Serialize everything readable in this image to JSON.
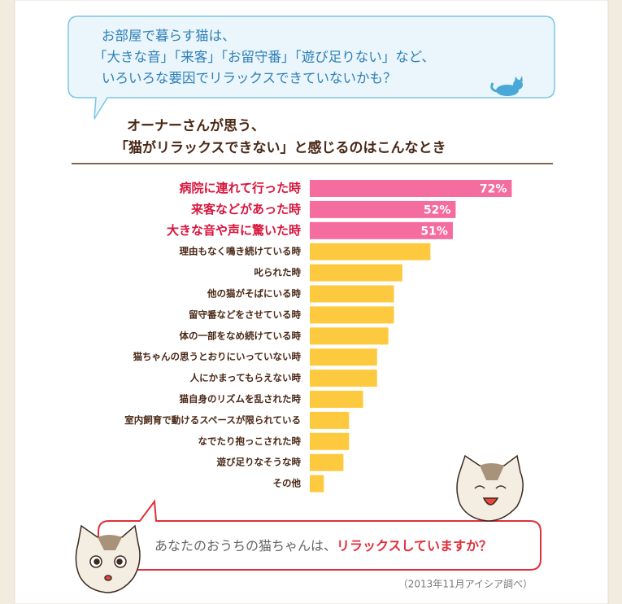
{
  "chart_data": {
    "type": "bar",
    "speech_bubble": [
      "お部屋で暮らす猫は、",
      "「大きな音」「来客」「お留守番」「遊び足りない」など、",
      "いろいろな要因でリラックスできていないかも？"
    ],
    "title": [
      "オーナーさんが思う、",
      "「猫がリラックスできない」と感じるのはこんなとき"
    ],
    "categories": [
      "病院に連れて行った時",
      "来客などがあった時",
      "大きな音や声に驚いた時",
      "理由もなく鳴き続けている時",
      "叱られた時",
      "他の猫がそばにいる時",
      "留守番などをさせている時",
      "体の一部をなめ続けている時",
      "猫ちゃんの思うとおりにいっていない時",
      "人にかまってもらえない時",
      "猫自身のリズムを乱された時",
      "室内飼育で動けるスペースが限られている",
      "なでたり抱っこされた時",
      "遊び足りなそうな時",
      "その他"
    ],
    "values": [
      72,
      52,
      51,
      43,
      33,
      30,
      30,
      28,
      24,
      24,
      19,
      14,
      14,
      12,
      5
    ],
    "value_labels": [
      "72%",
      "52%",
      "51%",
      null,
      null,
      null,
      null,
      null,
      null,
      null,
      null,
      null,
      null,
      null,
      null
    ],
    "colors": [
      "#f56c9e",
      "#f56c9e",
      "#f56c9e",
      "#fdc93e",
      "#fdc93e",
      "#fdc93e",
      "#fdc93e",
      "#fdc93e",
      "#fdc93e",
      "#fdc93e",
      "#fdc93e",
      "#fdc93e",
      "#fdc93e",
      "#fdc93e",
      "#fdc93e"
    ],
    "xlim": [
      0,
      100
    ],
    "question": {
      "lead": "あなたのおうちの猫ちゃんは、",
      "emphasis": "リラックスしていますか？"
    },
    "source": "（2013年11月アイシア調べ）"
  }
}
